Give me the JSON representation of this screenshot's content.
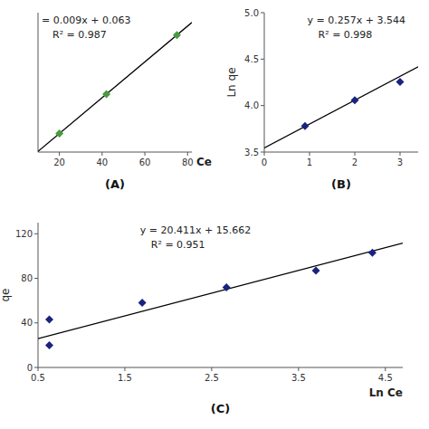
{
  "chart_data": [
    {
      "type": "scatter",
      "title": "(A)",
      "x_label": "Ce",
      "x": [
        20.0,
        42.0,
        75.0
      ],
      "values": [
        0.243,
        0.441,
        0.738
      ],
      "trendline": {
        "slope": 0.009,
        "intercept": 0.063
      },
      "annotations": [
        "= 0.009x + 0.063",
        "R² = 0.987"
      ],
      "xlim": [
        10,
        82
      ],
      "xticks": [
        20,
        40,
        60,
        80
      ],
      "ylim": [
        0.15,
        0.85
      ],
      "tick_labels": "x",
      "color": "#4a9a3f",
      "marker": "diamond"
    },
    {
      "type": "scatter",
      "title": "(B)",
      "y_label": "Ln qe",
      "x": [
        0.9,
        2.0,
        3.0
      ],
      "values": [
        3.78,
        4.058,
        4.255
      ],
      "trendline": {
        "slope": 0.257,
        "intercept": 3.544
      },
      "annotations": [
        "y = 0.257x + 3.544",
        "R² = 0.998"
      ],
      "xlim": [
        0,
        3.4
      ],
      "xticks": [
        0,
        1,
        2,
        3
      ],
      "ylim": [
        3.5,
        5.0
      ],
      "yticks": [
        3.5,
        {
          "value": 4.0,
          "label": "4.0"
        },
        4.5,
        {
          "value": 5.0,
          "label": "5.0"
        }
      ],
      "color": "#1a237e",
      "marker": "diamond"
    },
    {
      "type": "scatter",
      "title": "(C)",
      "x_label": "Ln Ce",
      "y_label": "qe",
      "x": [
        0.63,
        0.63,
        1.7,
        2.67,
        3.7,
        4.35
      ],
      "values": [
        20.0,
        43.0,
        58.0,
        72.0,
        87.0,
        103.0
      ],
      "trendline": {
        "slope": 20.411,
        "intercept": 15.662
      },
      "annotations": [
        "y = 20.411x + 15.662",
        "R² = 0.951"
      ],
      "xlim": [
        0.5,
        4.7
      ],
      "xticks": [
        0.5,
        1.5,
        2.5,
        3.5,
        4.5
      ],
      "ylim": [
        0.0,
        130
      ],
      "yticks": [
        0,
        40,
        80,
        120
      ],
      "color": "#1a237e",
      "marker": "diamond"
    }
  ]
}
